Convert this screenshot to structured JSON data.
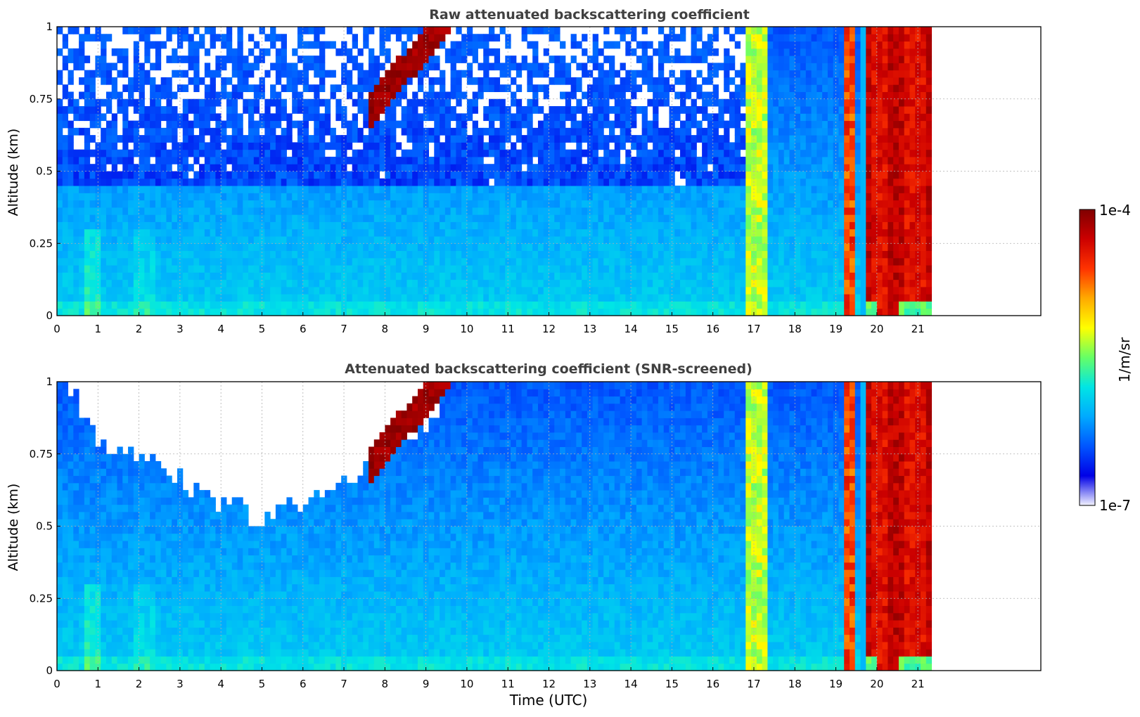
{
  "colors": {
    "title_text": "#404040",
    "grid": "#b0b0b0",
    "colormap": [
      "#f2f2ff",
      "#0000e6",
      "#0055ff",
      "#00aaff",
      "#00e5e5",
      "#66ff66",
      "#ffff00",
      "#ffaa00",
      "#ff3300",
      "#cc0000",
      "#800000"
    ]
  },
  "colorbar": {
    "label": "1/m/sr",
    "max_label": "1e-4",
    "min_label": "1e-7",
    "log_range": [
      -7,
      -4
    ]
  },
  "chart_data": [
    {
      "type": "heatmap",
      "title": "Raw attenuated backscattering coefficient",
      "xlabel": "",
      "ylabel": "Altitude (km)",
      "xlim": [
        0,
        24
      ],
      "ylim": [
        0,
        1
      ],
      "xticks": [
        "0",
        "1",
        "2",
        "3",
        "4",
        "5",
        "6",
        "7",
        "8",
        "9",
        "10",
        "11",
        "12",
        "13",
        "14",
        "15",
        "16",
        "17",
        "18",
        "19",
        "20",
        "21"
      ],
      "yticks": [
        "0",
        "0.25",
        "0.5",
        "0.75",
        "1"
      ],
      "grid": true,
      "screened": false,
      "value_scale": "log10",
      "data_end_hour": 21.4
    },
    {
      "type": "heatmap",
      "title": "Attenuated backscattering coefficient (SNR-screened)",
      "xlabel": "Time (UTC)",
      "ylabel": "Altitude (km)",
      "xlim": [
        0,
        24
      ],
      "ylim": [
        0,
        1
      ],
      "xticks": [
        "0",
        "1",
        "2",
        "3",
        "4",
        "5",
        "6",
        "7",
        "8",
        "9",
        "10",
        "11",
        "12",
        "13",
        "14",
        "15",
        "16",
        "17",
        "18",
        "19",
        "20",
        "21"
      ],
      "yticks": [
        "0",
        "0.25",
        "0.5",
        "0.75",
        "1"
      ],
      "grid": true,
      "screened": true,
      "value_scale": "log10",
      "data_end_hour": 21.4
    }
  ]
}
